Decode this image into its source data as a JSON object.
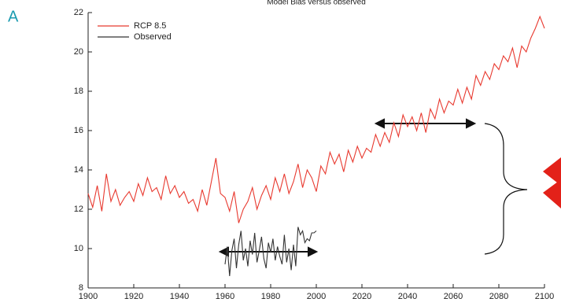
{
  "panel_label": "A",
  "chart_data": {
    "type": "line",
    "title": "Model Bias versus observed",
    "xlim": [
      1900,
      2100
    ],
    "ylim": [
      8,
      22
    ],
    "xticks": [
      1900,
      1920,
      1940,
      1960,
      1980,
      2000,
      2020,
      2040,
      2060,
      2080,
      2100
    ],
    "yticks": [
      8,
      10,
      12,
      14,
      16,
      18,
      20,
      22
    ],
    "legend": "upper left",
    "series": [
      {
        "name": "RCP 8.5",
        "color": "#e8392f",
        "x": [
          1900,
          1902,
          1904,
          1906,
          1908,
          1910,
          1912,
          1914,
          1916,
          1918,
          1920,
          1922,
          1924,
          1926,
          1928,
          1930,
          1932,
          1934,
          1936,
          1938,
          1940,
          1942,
          1944,
          1946,
          1948,
          1950,
          1952,
          1954,
          1956,
          1958,
          1960,
          1962,
          1964,
          1966,
          1968,
          1970,
          1972,
          1974,
          1976,
          1978,
          1980,
          1982,
          1984,
          1986,
          1988,
          1990,
          1992,
          1994,
          1996,
          1998,
          2000,
          2002,
          2004,
          2006,
          2008,
          2010,
          2012,
          2014,
          2016,
          2018,
          2020,
          2022,
          2024,
          2026,
          2028,
          2030,
          2032,
          2034,
          2036,
          2038,
          2040,
          2042,
          2044,
          2046,
          2048,
          2050,
          2052,
          2054,
          2056,
          2058,
          2060,
          2062,
          2064,
          2066,
          2068,
          2070,
          2072,
          2074,
          2076,
          2078,
          2080,
          2082,
          2084,
          2086,
          2088,
          2090,
          2092,
          2094,
          2096,
          2098,
          2100
        ],
        "values": [
          12.8,
          12.1,
          13.2,
          11.9,
          13.8,
          12.4,
          13.0,
          12.2,
          12.6,
          12.9,
          12.4,
          13.3,
          12.7,
          13.6,
          12.9,
          13.1,
          12.5,
          13.7,
          12.8,
          13.2,
          12.6,
          12.9,
          12.3,
          12.5,
          11.9,
          13.0,
          12.2,
          13.4,
          14.6,
          12.8,
          12.6,
          11.9,
          12.9,
          11.3,
          12.0,
          12.4,
          13.1,
          12.0,
          12.7,
          13.2,
          12.5,
          13.6,
          12.9,
          13.8,
          12.8,
          13.4,
          14.3,
          13.1,
          14.0,
          13.6,
          12.9,
          14.2,
          13.8,
          14.9,
          14.3,
          14.8,
          13.9,
          15.0,
          14.4,
          15.2,
          14.6,
          15.1,
          14.9,
          15.8,
          15.2,
          15.9,
          15.4,
          16.4,
          15.7,
          16.8,
          16.2,
          16.7,
          16.0,
          16.9,
          15.9,
          17.1,
          16.6,
          17.6,
          16.9,
          17.5,
          17.3,
          18.1,
          17.4,
          18.2,
          17.6,
          18.8,
          18.3,
          19.0,
          18.6,
          19.4,
          19.1,
          19.8,
          19.5,
          20.2,
          19.2,
          20.3,
          20.0,
          20.7,
          21.2,
          21.8,
          21.2
        ]
      },
      {
        "name": "Observed",
        "color": "#333333",
        "x": [
          1960,
          1961,
          1962,
          1963,
          1964,
          1965,
          1966,
          1967,
          1968,
          1969,
          1970,
          1971,
          1972,
          1973,
          1974,
          1975,
          1976,
          1977,
          1978,
          1979,
          1980,
          1981,
          1982,
          1983,
          1984,
          1985,
          1986,
          1987,
          1988,
          1989,
          1990,
          1991,
          1992,
          1993,
          1994,
          1995,
          1996,
          1997,
          1998,
          1999,
          2000
        ],
        "values": [
          9.2,
          10.1,
          8.6,
          9.9,
          10.5,
          9.0,
          10.2,
          10.9,
          9.4,
          10.0,
          9.1,
          10.4,
          9.7,
          10.8,
          9.3,
          9.9,
          10.6,
          9.5,
          9.0,
          10.3,
          9.8,
          10.5,
          9.4,
          10.1,
          9.6,
          9.2,
          10.7,
          9.3,
          10.0,
          8.9,
          10.2,
          9.1,
          11.1,
          10.7,
          10.9,
          10.3,
          10.5,
          10.4,
          10.8,
          10.8,
          10.9
        ]
      }
    ]
  }
}
